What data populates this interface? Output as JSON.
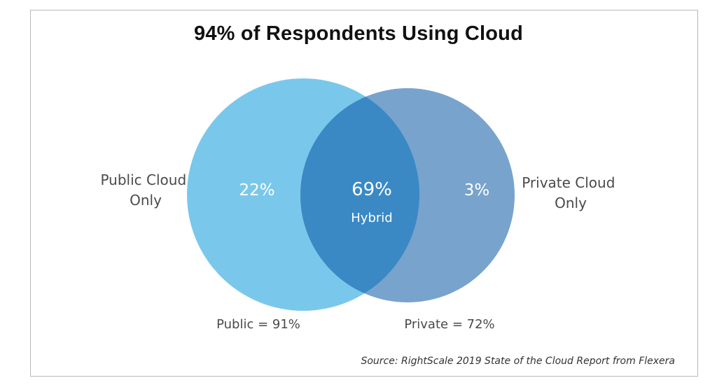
{
  "chart_data": {
    "type": "venn",
    "title": "94% of Respondents Using Cloud",
    "sets": [
      {
        "name": "Public",
        "total_label": "Public = 91%",
        "total_value": 91,
        "only_label_lines": [
          "Public Cloud",
          "Only"
        ],
        "only_value": 22,
        "only_text": "22%",
        "color": "#79c8ec"
      },
      {
        "name": "Private",
        "total_label": "Private = 72%",
        "total_value": 72,
        "only_label_lines": [
          "Private Cloud",
          "Only"
        ],
        "only_value": 3,
        "only_text": "3%",
        "color": "#78a3cc"
      }
    ],
    "intersection": {
      "value": 69,
      "text": "69%",
      "label": "Hybrid",
      "color": "#3a89c5"
    },
    "source": "Source: RightScale 2019 State of the Cloud Report from Flexera"
  }
}
